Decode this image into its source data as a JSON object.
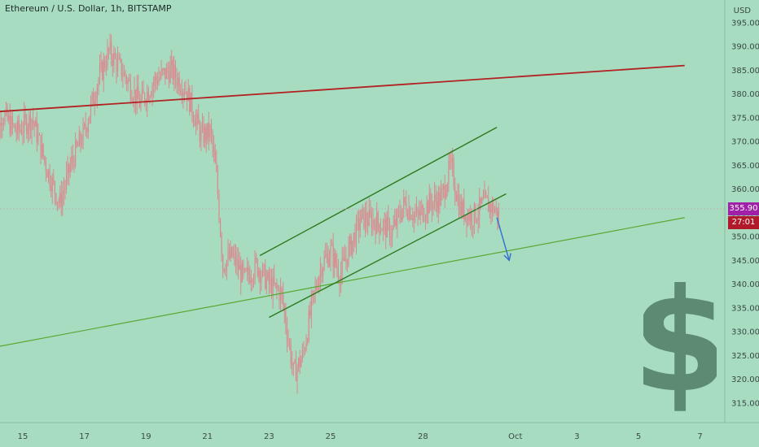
{
  "header": {
    "title": "Ethereum / U.S. Dollar, 1h, BITSTAMP",
    "currency": "USD"
  },
  "price_badges": {
    "last_price": "355.90",
    "last_price_color": "#a020a8",
    "countdown": "27:01",
    "countdown_color": "#b01a2a"
  },
  "icons": {
    "dollar": "dollar-sign-icon"
  },
  "colors": {
    "background": "#a7dcc0",
    "candle": "#d98a8f",
    "resistance_line": "#b22222",
    "support_line": "#5aa832",
    "channel_line": "#2d7a1e",
    "arrow": "#2f6fd0",
    "dollar_sign": "#5d8a73"
  },
  "chart_data": {
    "type": "candlestick",
    "symbol": "Ethereum / U.S. Dollar",
    "timeframe": "1h",
    "exchange": "BITSTAMP",
    "y_ticks": [
      "315.00",
      "320.00",
      "325.00",
      "330.00",
      "335.00",
      "340.00",
      "345.00",
      "350.00",
      "355.00",
      "360.00",
      "365.00",
      "370.00",
      "375.00",
      "380.00",
      "385.00",
      "390.00",
      "395.00"
    ],
    "x_ticks": [
      "15",
      "17",
      "19",
      "21",
      "23",
      "25",
      "28",
      "Oct",
      "3",
      "5",
      "7"
    ],
    "ylim": [
      312,
      397
    ],
    "price_path": [
      {
        "t": 14.0,
        "p": 362
      },
      {
        "t": 14.3,
        "p": 376
      },
      {
        "t": 14.8,
        "p": 372
      },
      {
        "t": 15.3,
        "p": 375
      },
      {
        "t": 15.8,
        "p": 364
      },
      {
        "t": 16.2,
        "p": 357
      },
      {
        "t": 16.6,
        "p": 366
      },
      {
        "t": 17.0,
        "p": 372
      },
      {
        "t": 17.4,
        "p": 382
      },
      {
        "t": 17.8,
        "p": 389
      },
      {
        "t": 18.3,
        "p": 384
      },
      {
        "t": 18.8,
        "p": 378
      },
      {
        "t": 19.3,
        "p": 383
      },
      {
        "t": 19.8,
        "p": 385
      },
      {
        "t": 20.3,
        "p": 381
      },
      {
        "t": 20.8,
        "p": 371
      },
      {
        "t": 21.1,
        "p": 372
      },
      {
        "t": 21.3,
        "p": 362
      },
      {
        "t": 21.5,
        "p": 344
      },
      {
        "t": 21.8,
        "p": 346
      },
      {
        "t": 22.2,
        "p": 341
      },
      {
        "t": 22.6,
        "p": 344
      },
      {
        "t": 23.0,
        "p": 340
      },
      {
        "t": 23.4,
        "p": 338
      },
      {
        "t": 23.8,
        "p": 321
      },
      {
        "t": 24.1,
        "p": 325
      },
      {
        "t": 24.4,
        "p": 336
      },
      {
        "t": 24.7,
        "p": 344
      },
      {
        "t": 25.0,
        "p": 347
      },
      {
        "t": 25.3,
        "p": 342
      },
      {
        "t": 25.7,
        "p": 349
      },
      {
        "t": 26.0,
        "p": 354
      },
      {
        "t": 26.5,
        "p": 353
      },
      {
        "t": 27.0,
        "p": 351
      },
      {
        "t": 27.4,
        "p": 357
      },
      {
        "t": 27.8,
        "p": 354
      },
      {
        "t": 28.2,
        "p": 357
      },
      {
        "t": 28.6,
        "p": 358
      },
      {
        "t": 28.9,
        "p": 365
      },
      {
        "t": 29.2,
        "p": 356
      },
      {
        "t": 29.6,
        "p": 354
      },
      {
        "t": 30.0,
        "p": 357
      },
      {
        "t": 30.3,
        "p": 356
      },
      {
        "t": 30.5,
        "p": 354
      }
    ],
    "lines": [
      {
        "name": "resistance",
        "from": {
          "t": 13.5,
          "p": 376
        },
        "to": {
          "t": 36.5,
          "p": 386
        }
      },
      {
        "name": "support",
        "from": {
          "t": 13.5,
          "p": 326
        },
        "to": {
          "t": 36.5,
          "p": 354
        }
      },
      {
        "name": "channel-upper",
        "from": {
          "t": 22.7,
          "p": 346
        },
        "to": {
          "t": 30.4,
          "p": 373
        }
      },
      {
        "name": "channel-lower",
        "from": {
          "t": 23.0,
          "p": 333
        },
        "to": {
          "t": 30.7,
          "p": 359
        }
      }
    ],
    "arrow": {
      "from": {
        "t": 30.4,
        "p": 354
      },
      "to": {
        "t": 30.8,
        "p": 345
      }
    },
    "last_price": 355.9
  }
}
